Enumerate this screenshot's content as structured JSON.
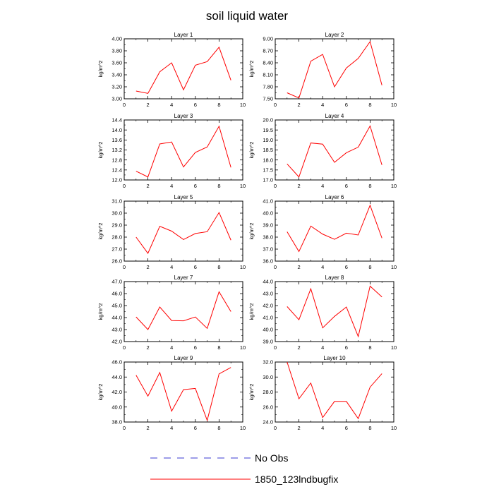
{
  "title": "soil liquid water",
  "colors": {
    "model": "#ff0000",
    "obs": "#3b3bd0",
    "axis": "#000000"
  },
  "legend": {
    "obs_label": "No Obs",
    "model_label": "1850_123lndbugfix"
  },
  "chart_data": [
    {
      "type": "line",
      "title": "Layer 1",
      "ylabel": "kg/m^2",
      "xlim": [
        0,
        10
      ],
      "ylim": [
        3.0,
        4.0
      ],
      "xticks": [
        0,
        2,
        4,
        6,
        8,
        10
      ],
      "xtick_labels": [
        "0",
        "2",
        "4",
        "6",
        "8",
        "10"
      ],
      "yticks": [
        3.0,
        3.2,
        3.4,
        3.6,
        3.8,
        4.0
      ],
      "ytick_labels": [
        "3.00",
        "3.20",
        "3.40",
        "3.60",
        "3.80",
        "4.00"
      ],
      "series": [
        {
          "name": "1850_123lndbugfix",
          "x": [
            1,
            2,
            3,
            4,
            5,
            6,
            7,
            8,
            9
          ],
          "y": [
            3.13,
            3.09,
            3.45,
            3.6,
            3.15,
            3.56,
            3.62,
            3.86,
            3.31
          ]
        }
      ]
    },
    {
      "type": "line",
      "title": "Layer 2",
      "ylabel": "kg/m^2",
      "xlim": [
        0,
        10
      ],
      "ylim": [
        7.5,
        9.0
      ],
      "xticks": [
        0,
        2,
        4,
        6,
        8,
        10
      ],
      "xtick_labels": [
        "0",
        "2",
        "4",
        "6",
        "8",
        "10"
      ],
      "yticks": [
        7.5,
        7.8,
        8.1,
        8.4,
        8.7,
        9.0
      ],
      "ytick_labels": [
        "7.50",
        "7.80",
        "8.10",
        "8.40",
        "8.70",
        "9.00"
      ],
      "series": [
        {
          "name": "1850_123lndbugfix",
          "x": [
            1,
            2,
            3,
            4,
            5,
            6,
            7,
            8,
            9
          ],
          "y": [
            7.65,
            7.52,
            8.44,
            8.61,
            7.8,
            8.27,
            8.51,
            8.93,
            7.84
          ]
        }
      ]
    },
    {
      "type": "line",
      "title": "Layer 3",
      "ylabel": "kg/m^2",
      "xlim": [
        0,
        10
      ],
      "ylim": [
        12.0,
        14.4
      ],
      "xticks": [
        0,
        2,
        4,
        6,
        8,
        10
      ],
      "xtick_labels": [
        "0",
        "2",
        "4",
        "6",
        "8",
        "10"
      ],
      "yticks": [
        12.0,
        12.4,
        12.8,
        13.2,
        13.6,
        14.0,
        14.4
      ],
      "ytick_labels": [
        "12.0",
        "12.4",
        "12.8",
        "13.2",
        "13.6",
        "14.0",
        "14.4"
      ],
      "series": [
        {
          "name": "1850_123lndbugfix",
          "x": [
            1,
            2,
            3,
            4,
            5,
            6,
            7,
            8,
            9
          ],
          "y": [
            12.35,
            12.12,
            13.44,
            13.52,
            12.52,
            13.1,
            13.32,
            14.15,
            12.5
          ]
        }
      ]
    },
    {
      "type": "line",
      "title": "Layer 4",
      "ylabel": "kg/m^2",
      "xlim": [
        0,
        10
      ],
      "ylim": [
        17.0,
        20.0
      ],
      "xticks": [
        0,
        2,
        4,
        6,
        8,
        10
      ],
      "xtick_labels": [
        "0",
        "2",
        "4",
        "6",
        "8",
        "10"
      ],
      "yticks": [
        17.0,
        17.5,
        18.0,
        18.5,
        19.0,
        19.5,
        20.0
      ],
      "ytick_labels": [
        "17.0",
        "17.5",
        "18.0",
        "18.5",
        "19.0",
        "19.5",
        "20.0"
      ],
      "series": [
        {
          "name": "1850_123lndbugfix",
          "x": [
            1,
            2,
            3,
            4,
            5,
            6,
            7,
            8,
            9
          ],
          "y": [
            17.8,
            17.15,
            18.85,
            18.79,
            17.88,
            18.36,
            18.64,
            19.7,
            17.75
          ]
        }
      ]
    },
    {
      "type": "line",
      "title": "Layer 5",
      "ylabel": "kg/m^2",
      "xlim": [
        0,
        10
      ],
      "ylim": [
        26.0,
        31.0
      ],
      "xticks": [
        0,
        2,
        4,
        6,
        8,
        10
      ],
      "xtick_labels": [
        "0",
        "2",
        "4",
        "6",
        "8",
        "10"
      ],
      "yticks": [
        26.0,
        27.0,
        28.0,
        29.0,
        30.0,
        31.0
      ],
      "ytick_labels": [
        "26.0",
        "27.0",
        "28.0",
        "29.0",
        "30.0",
        "31.0"
      ],
      "series": [
        {
          "name": "1850_123lndbugfix",
          "x": [
            1,
            2,
            3,
            4,
            5,
            6,
            7,
            8,
            9
          ],
          "y": [
            28.0,
            26.65,
            28.9,
            28.5,
            27.8,
            28.3,
            28.45,
            30.05,
            27.75
          ]
        }
      ]
    },
    {
      "type": "line",
      "title": "Layer 6",
      "ylabel": "kg/m^2",
      "xlim": [
        0,
        10
      ],
      "ylim": [
        36.0,
        41.0
      ],
      "xticks": [
        0,
        2,
        4,
        6,
        8,
        10
      ],
      "xtick_labels": [
        "0",
        "2",
        "4",
        "6",
        "8",
        "10"
      ],
      "yticks": [
        36.0,
        37.0,
        38.0,
        39.0,
        40.0,
        41.0
      ],
      "ytick_labels": [
        "36.0",
        "37.0",
        "38.0",
        "39.0",
        "40.0",
        "41.0"
      ],
      "series": [
        {
          "name": "1850_123lndbugfix",
          "x": [
            1,
            2,
            3,
            4,
            5,
            6,
            7,
            8,
            9
          ],
          "y": [
            38.45,
            36.8,
            38.92,
            38.25,
            37.82,
            38.33,
            38.18,
            40.65,
            37.92
          ]
        }
      ]
    },
    {
      "type": "line",
      "title": "Layer 7",
      "ylabel": "kg/m^2",
      "xlim": [
        0,
        10
      ],
      "ylim": [
        42.0,
        47.0
      ],
      "xticks": [
        0,
        2,
        4,
        6,
        8,
        10
      ],
      "xtick_labels": [
        "0",
        "2",
        "4",
        "6",
        "8",
        "10"
      ],
      "yticks": [
        42.0,
        43.0,
        44.0,
        45.0,
        46.0,
        47.0
      ],
      "ytick_labels": [
        "42.0",
        "43.0",
        "44.0",
        "45.0",
        "46.0",
        "47.0"
      ],
      "series": [
        {
          "name": "1850_123lndbugfix",
          "x": [
            1,
            2,
            3,
            4,
            5,
            6,
            7,
            8,
            9
          ],
          "y": [
            44.05,
            43.0,
            44.88,
            43.75,
            43.73,
            44.05,
            43.1,
            46.15,
            44.5
          ]
        }
      ]
    },
    {
      "type": "line",
      "title": "Layer 8",
      "ylabel": "kg/m^2",
      "xlim": [
        0,
        10
      ],
      "ylim": [
        39.0,
        44.0
      ],
      "xticks": [
        0,
        2,
        4,
        6,
        8,
        10
      ],
      "xtick_labels": [
        "0",
        "2",
        "4",
        "6",
        "8",
        "10"
      ],
      "yticks": [
        39.0,
        40.0,
        41.0,
        42.0,
        43.0,
        44.0
      ],
      "ytick_labels": [
        "39.0",
        "40.0",
        "41.0",
        "42.0",
        "43.0",
        "44.0"
      ],
      "series": [
        {
          "name": "1850_123lndbugfix",
          "x": [
            1,
            2,
            3,
            4,
            5,
            6,
            7,
            8,
            9
          ],
          "y": [
            41.92,
            40.82,
            43.4,
            40.14,
            41.1,
            41.88,
            39.42,
            43.62,
            42.72
          ]
        }
      ]
    },
    {
      "type": "line",
      "title": "Layer 9",
      "ylabel": "kg/m^2",
      "xlim": [
        0,
        10
      ],
      "ylim": [
        38.0,
        46.0
      ],
      "xticks": [
        0,
        2,
        4,
        6,
        8,
        10
      ],
      "xtick_labels": [
        "0",
        "2",
        "4",
        "6",
        "8",
        "10"
      ],
      "yticks": [
        38.0,
        40.0,
        42.0,
        44.0,
        46.0
      ],
      "ytick_labels": [
        "38.0",
        "40.0",
        "42.0",
        "44.0",
        "46.0"
      ],
      "series": [
        {
          "name": "1850_123lndbugfix",
          "x": [
            1,
            2,
            3,
            4,
            5,
            6,
            7,
            8,
            9
          ],
          "y": [
            44.25,
            41.45,
            44.6,
            39.45,
            42.32,
            42.48,
            38.22,
            44.42,
            45.28
          ]
        }
      ]
    },
    {
      "type": "line",
      "title": "Layer 10",
      "ylabel": "kg/m^2",
      "xlim": [
        0,
        10
      ],
      "ylim": [
        24.0,
        32.0
      ],
      "xticks": [
        0,
        2,
        4,
        6,
        8,
        10
      ],
      "xtick_labels": [
        "0",
        "2",
        "4",
        "6",
        "8",
        "10"
      ],
      "yticks": [
        24.0,
        26.0,
        28.0,
        30.0,
        32.0
      ],
      "ytick_labels": [
        "24.0",
        "26.0",
        "28.0",
        "30.0",
        "32.0"
      ],
      "series": [
        {
          "name": "1850_123lndbugfix",
          "x": [
            1,
            2,
            3,
            4,
            5,
            6,
            7,
            8,
            9
          ],
          "y": [
            32.0,
            27.1,
            29.2,
            24.6,
            26.75,
            26.75,
            24.45,
            28.65,
            30.45
          ]
        }
      ]
    }
  ]
}
